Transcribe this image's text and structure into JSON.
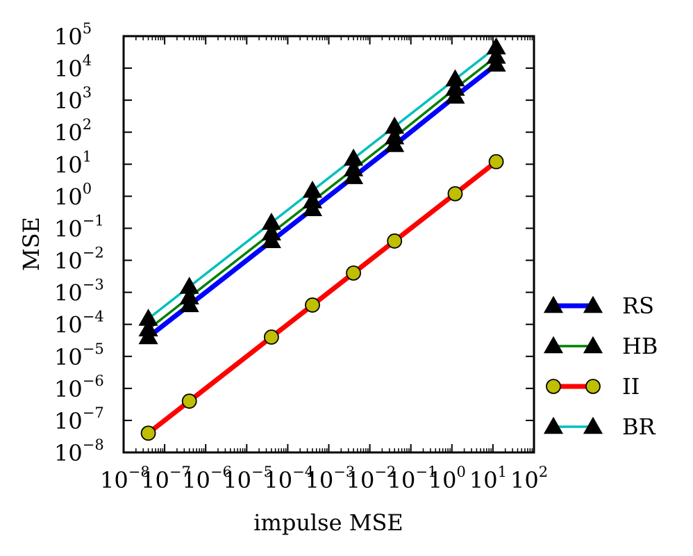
{
  "chart_data": {
    "type": "line",
    "title": "",
    "xlabel": "impulse MSE",
    "ylabel": "MSE",
    "xscale": "log",
    "yscale": "log",
    "xlim": [
      1e-08,
      100
    ],
    "ylim": [
      1e-08,
      100000
    ],
    "x_tick_labels": [
      {
        "base": "10",
        "exp": "−8",
        "value": 1e-08
      },
      {
        "base": "10",
        "exp": "−7",
        "value": 1e-07
      },
      {
        "base": "10",
        "exp": "−6",
        "value": 1e-06
      },
      {
        "base": "10",
        "exp": "−5",
        "value": 1e-05
      },
      {
        "base": "10",
        "exp": "−4",
        "value": 0.0001
      },
      {
        "base": "10",
        "exp": "−3",
        "value": 0.001
      },
      {
        "base": "10",
        "exp": "−2",
        "value": 0.01
      },
      {
        "base": "10",
        "exp": "−1",
        "value": 0.1
      },
      {
        "base": "10",
        "exp": "0",
        "value": 1
      },
      {
        "base": "10",
        "exp": "1",
        "value": 10
      },
      {
        "base": "10",
        "exp": "2",
        "value": 100
      }
    ],
    "y_tick_labels": [
      {
        "base": "10",
        "exp": "−8",
        "value": 1e-08
      },
      {
        "base": "10",
        "exp": "−7",
        "value": 1e-07
      },
      {
        "base": "10",
        "exp": "−6",
        "value": 1e-06
      },
      {
        "base": "10",
        "exp": "−5",
        "value": 1e-05
      },
      {
        "base": "10",
        "exp": "−4",
        "value": 0.0001
      },
      {
        "base": "10",
        "exp": "−3",
        "value": 0.001
      },
      {
        "base": "10",
        "exp": "−2",
        "value": 0.01
      },
      {
        "base": "10",
        "exp": "−1",
        "value": 0.1
      },
      {
        "base": "10",
        "exp": "0",
        "value": 1
      },
      {
        "base": "10",
        "exp": "1",
        "value": 10
      },
      {
        "base": "10",
        "exp": "2",
        "value": 100
      },
      {
        "base": "10",
        "exp": "3",
        "value": 1000
      },
      {
        "base": "10",
        "exp": "4",
        "value": 10000
      },
      {
        "base": "10",
        "exp": "5",
        "value": 100000
      }
    ],
    "x": [
      4e-08,
      4e-07,
      4e-05,
      0.0004,
      0.004,
      0.04,
      1.2,
      12
    ],
    "series": [
      {
        "name": "RS",
        "color": "#0000ff",
        "marker": "triangle",
        "marker_color": "#000000",
        "values": [
          4e-05,
          0.0004,
          0.04,
          0.4,
          4,
          40,
          1300,
          13000
        ]
      },
      {
        "name": "HB",
        "color": "#008000",
        "marker": "triangle",
        "marker_color": "#000000",
        "values": [
          7e-05,
          0.0007,
          0.07,
          0.7,
          7,
          70,
          2300,
          23000
        ]
      },
      {
        "name": "II",
        "color": "#ff0000",
        "marker": "circle",
        "marker_color": "#bfbf00",
        "values": [
          4e-08,
          4e-07,
          4e-05,
          0.0004,
          0.004,
          0.04,
          1.2,
          12
        ]
      },
      {
        "name": "BR",
        "color": "#00bfbf",
        "marker": "triangle",
        "marker_color": "#000000",
        "values": [
          0.00015,
          0.0015,
          0.15,
          1.5,
          15,
          150,
          4500,
          45000
        ]
      }
    ],
    "legend_position": "right"
  }
}
